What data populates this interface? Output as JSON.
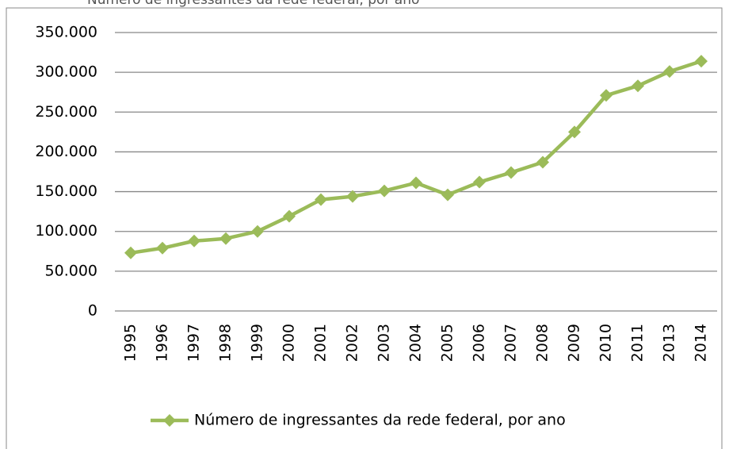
{
  "chart_data": {
    "type": "line",
    "title": "Número de ingressantes da rede federal, por ano",
    "categories": [
      "1995",
      "1996",
      "1997",
      "1998",
      "1999",
      "2000",
      "2001",
      "2002",
      "2003",
      "2004",
      "2005",
      "2006",
      "2007",
      "2008",
      "2009",
      "2010",
      "2011",
      "2013",
      "2014"
    ],
    "series": [
      {
        "name": "Número de ingressantes da rede federal, por ano",
        "color": "#9bbb59",
        "values": [
          73000,
          79000,
          88000,
          91000,
          100000,
          119000,
          140000,
          144000,
          151000,
          161000,
          146000,
          162000,
          174000,
          187000,
          225000,
          271000,
          283000,
          301000,
          314000
        ]
      }
    ],
    "ylim": [
      0,
      350000
    ],
    "yticks": [
      0,
      {
        "value": 50000,
        "label": "50.000"
      },
      {
        "value": 100000,
        "label": "100.000"
      },
      {
        "value": 150000,
        "label": "150.000"
      },
      {
        "value": 200000,
        "label": "200.000"
      },
      {
        "value": 250000,
        "label": "250.000"
      },
      {
        "value": 300000,
        "label": "300.000"
      },
      {
        "value": 350000,
        "label": "350.000"
      }
    ],
    "grid": true,
    "legend": "bottom"
  }
}
